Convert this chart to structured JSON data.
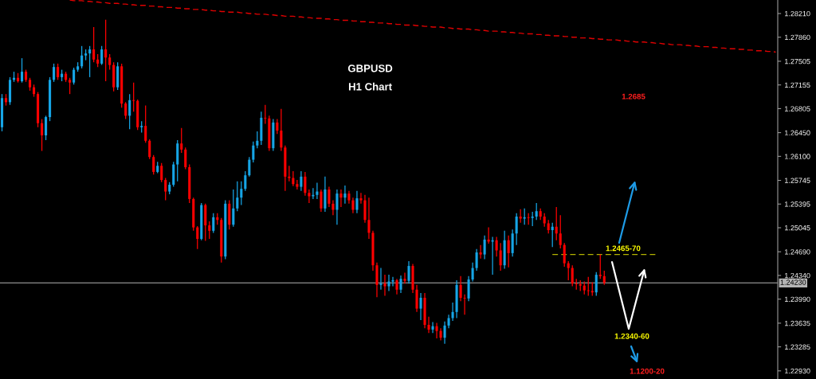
{
  "chart_data": {
    "type": "candlestick",
    "title": "GBPUSD",
    "subtitle": "H1 Chart",
    "categories": [
      null,
      null,
      null,
      null,
      null,
      null,
      null,
      null,
      null,
      null,
      null,
      null,
      null,
      null,
      null,
      null,
      null,
      null,
      null,
      null,
      null,
      null,
      null,
      null,
      null,
      null,
      null,
      null,
      null,
      null,
      null,
      null,
      null,
      null,
      null,
      null,
      null,
      null,
      null,
      null,
      null,
      null,
      null,
      null,
      null,
      null,
      null,
      null,
      null,
      null,
      null,
      null,
      null,
      null,
      null,
      null,
      null,
      null,
      null,
      null,
      null,
      null,
      null,
      null,
      null,
      null,
      null,
      null,
      null,
      null,
      null,
      null,
      null,
      null,
      null,
      null,
      null,
      null,
      null,
      null,
      null,
      null,
      null,
      null,
      null,
      null,
      null,
      null,
      null,
      null,
      null,
      null,
      null,
      null,
      null,
      null,
      null,
      null,
      null,
      null,
      null,
      null,
      null,
      null,
      null,
      null,
      null,
      null,
      null,
      null,
      null,
      null,
      null,
      null,
      null,
      null,
      null,
      null,
      null,
      null,
      null,
      null,
      null,
      null,
      null,
      null,
      null,
      null,
      null,
      null,
      null,
      null,
      null,
      null,
      null,
      null,
      null,
      null,
      null,
      null,
      null,
      null,
      null,
      null,
      null,
      null,
      null,
      null,
      null,
      null,
      null,
      null,
      null,
      null,
      null,
      null,
      null,
      null,
      null,
      null,
      null,
      null,
      null,
      null,
      null,
      null,
      null,
      null,
      null,
      null,
      null,
      null,
      null,
      null,
      null,
      null,
      null,
      null,
      null,
      null,
      null,
      null,
      null,
      null,
      null,
      null,
      null,
      null,
      null,
      null,
      null,
      null,
      null,
      null,
      null
    ],
    "ohlc": [
      [
        1.2653,
        1.2702,
        1.2647,
        1.2696
      ],
      [
        1.2696,
        1.2702,
        1.2685,
        1.269
      ],
      [
        1.269,
        1.2727,
        1.2686,
        1.2723
      ],
      [
        1.2723,
        1.2735,
        1.272,
        1.2726
      ],
      [
        1.2726,
        1.2733,
        1.2719,
        1.2721
      ],
      [
        1.2721,
        1.2755,
        1.2719,
        1.2735
      ],
      [
        1.2735,
        1.2738,
        1.272,
        1.2723
      ],
      [
        1.2723,
        1.2726,
        1.2707,
        1.2712
      ],
      [
        1.2712,
        1.2716,
        1.2698,
        1.2702
      ],
      [
        1.2702,
        1.2705,
        1.2653,
        1.2659
      ],
      [
        1.2659,
        1.2665,
        1.2618,
        1.2641
      ],
      [
        1.2641,
        1.267,
        1.2634,
        1.2668
      ],
      [
        1.2668,
        1.2727,
        1.2662,
        1.2723
      ],
      [
        1.2723,
        1.2747,
        1.272,
        1.2742
      ],
      [
        1.2742,
        1.2747,
        1.2723,
        1.2727
      ],
      [
        1.2727,
        1.2738,
        1.2721,
        1.2732
      ],
      [
        1.2732,
        1.2735,
        1.272,
        1.2723
      ],
      [
        1.2723,
        1.2726,
        1.2702,
        1.2719
      ],
      [
        1.2719,
        1.2741,
        1.2716,
        1.2738
      ],
      [
        1.2738,
        1.2749,
        1.2735,
        1.2743
      ],
      [
        1.2743,
        1.2773,
        1.274,
        1.2759
      ],
      [
        1.2759,
        1.2768,
        1.2752,
        1.2762
      ],
      [
        1.2762,
        1.2773,
        1.2727,
        1.2768
      ],
      [
        1.2768,
        1.2801,
        1.2749,
        1.2753
      ],
      [
        1.2753,
        1.2761,
        1.2742,
        1.2747
      ],
      [
        1.2747,
        1.2773,
        1.2745,
        1.2768
      ],
      [
        1.2768,
        1.2812,
        1.2721,
        1.2756
      ],
      [
        1.2756,
        1.2761,
        1.2738,
        1.2745
      ],
      [
        1.2745,
        1.2749,
        1.2706,
        1.2712
      ],
      [
        1.2712,
        1.2749,
        1.2708,
        1.2743
      ],
      [
        1.2743,
        1.2747,
        1.2682,
        1.2688
      ],
      [
        1.2688,
        1.269,
        1.2665,
        1.267
      ],
      [
        1.267,
        1.2702,
        1.265,
        1.2693
      ],
      [
        1.2693,
        1.2719,
        1.2676,
        1.2692
      ],
      [
        1.2692,
        1.2694,
        1.2649,
        1.2653
      ],
      [
        1.2653,
        1.2662,
        1.2645,
        1.2655
      ],
      [
        1.2655,
        1.2685,
        1.263,
        1.2633
      ],
      [
        1.2633,
        1.2635,
        1.2606,
        1.2609
      ],
      [
        1.2609,
        1.2612,
        1.2583,
        1.2587
      ],
      [
        1.2587,
        1.2602,
        1.2585,
        1.2596
      ],
      [
        1.2596,
        1.26,
        1.2572,
        1.2575
      ],
      [
        1.2575,
        1.2578,
        1.2545,
        1.2558
      ],
      [
        1.2558,
        1.2572,
        1.2554,
        1.2568
      ],
      [
        1.2568,
        1.2602,
        1.2565,
        1.2598
      ],
      [
        1.2598,
        1.2634,
        1.2573,
        1.2629
      ],
      [
        1.2629,
        1.2652,
        1.2615,
        1.262
      ],
      [
        1.262,
        1.2623,
        1.2591,
        1.2594
      ],
      [
        1.2594,
        1.2598,
        1.2541,
        1.2547
      ],
      [
        1.2547,
        1.2549,
        1.25,
        1.2505
      ],
      [
        1.2505,
        1.2507,
        1.2473,
        1.2488
      ],
      [
        1.2488,
        1.2541,
        1.2486,
        1.2538
      ],
      [
        1.2538,
        1.254,
        1.2485,
        1.2508
      ],
      [
        1.2508,
        1.2514,
        1.2488,
        1.25
      ],
      [
        1.25,
        1.2526,
        1.2497,
        1.252
      ],
      [
        1.252,
        1.2526,
        1.2509,
        1.2516
      ],
      [
        1.2516,
        1.2519,
        1.2453,
        1.2462
      ],
      [
        1.2462,
        1.2545,
        1.2458,
        1.254
      ],
      [
        1.254,
        1.2545,
        1.2502,
        1.2509
      ],
      [
        1.2509,
        1.2561,
        1.2506,
        1.2533
      ],
      [
        1.2533,
        1.2573,
        1.2529,
        1.2549
      ],
      [
        1.2549,
        1.2573,
        1.2538,
        1.2562
      ],
      [
        1.2562,
        1.2588,
        1.2559,
        1.2582
      ],
      [
        1.2582,
        1.2609,
        1.258,
        1.2605
      ],
      [
        1.2605,
        1.2632,
        1.2601,
        1.2626
      ],
      [
        1.2626,
        1.2647,
        1.2622,
        1.2633
      ],
      [
        1.2633,
        1.2676,
        1.2627,
        1.2667
      ],
      [
        1.2667,
        1.2686,
        1.2658,
        1.2666
      ],
      [
        1.2666,
        1.267,
        1.2618,
        1.2622
      ],
      [
        1.2622,
        1.2665,
        1.2618,
        1.266
      ],
      [
        1.266,
        1.2665,
        1.2643,
        1.2648
      ],
      [
        1.2648,
        1.268,
        1.2618,
        1.2623
      ],
      [
        1.2623,
        1.2626,
        1.2559,
        1.258
      ],
      [
        1.258,
        1.2596,
        1.2573,
        1.2578
      ],
      [
        1.2578,
        1.2588,
        1.2566,
        1.2569
      ],
      [
        1.2569,
        1.2575,
        1.2561,
        1.2565
      ],
      [
        1.2565,
        1.2588,
        1.2559,
        1.258
      ],
      [
        1.258,
        1.2587,
        1.2552,
        1.2556
      ],
      [
        1.2556,
        1.2561,
        1.2541,
        1.2551
      ],
      [
        1.2551,
        1.2563,
        1.2547,
        1.2553
      ],
      [
        1.2553,
        1.2571,
        1.2547,
        1.2558
      ],
      [
        1.2558,
        1.2561,
        1.2528,
        1.2533
      ],
      [
        1.2533,
        1.258,
        1.2528,
        1.2561
      ],
      [
        1.2561,
        1.2565,
        1.2535,
        1.254
      ],
      [
        1.254,
        1.2545,
        1.2523,
        1.2531
      ],
      [
        1.2531,
        1.2561,
        1.2509,
        1.2555
      ],
      [
        1.2555,
        1.2561,
        1.2535,
        1.2549
      ],
      [
        1.2549,
        1.2567,
        1.254,
        1.2555
      ],
      [
        1.2555,
        1.2559,
        1.254,
        1.2545
      ],
      [
        1.2545,
        1.2549,
        1.2526,
        1.2531
      ],
      [
        1.2531,
        1.2559,
        1.2526,
        1.2548
      ],
      [
        1.2548,
        1.2556,
        1.254,
        1.2545
      ],
      [
        1.2545,
        1.2553,
        1.2512,
        1.2516
      ],
      [
        1.2516,
        1.2549,
        1.2488,
        1.2497
      ],
      [
        1.2497,
        1.25,
        1.2441,
        1.2449
      ],
      [
        1.2449,
        1.2453,
        1.2402,
        1.242
      ],
      [
        1.242,
        1.2445,
        1.2413,
        1.2422
      ],
      [
        1.2422,
        1.2435,
        1.2404,
        1.2418
      ],
      [
        1.2418,
        1.2435,
        1.2411,
        1.2425
      ],
      [
        1.2425,
        1.2432,
        1.2418,
        1.2427
      ],
      [
        1.2427,
        1.2429,
        1.2406,
        1.2413
      ],
      [
        1.2413,
        1.2434,
        1.2408,
        1.2429
      ],
      [
        1.2429,
        1.2438,
        1.2422,
        1.2426
      ],
      [
        1.2426,
        1.2455,
        1.2422,
        1.2448
      ],
      [
        1.2448,
        1.2451,
        1.2408,
        1.2413
      ],
      [
        1.2413,
        1.242,
        1.238,
        1.2385
      ],
      [
        1.2385,
        1.2408,
        1.2368,
        1.2401
      ],
      [
        1.2401,
        1.2408,
        1.2356,
        1.2361
      ],
      [
        1.2361,
        1.2373,
        1.2349,
        1.2354
      ],
      [
        1.2354,
        1.2365,
        1.2349,
        1.2359
      ],
      [
        1.2359,
        1.2364,
        1.2341,
        1.2352
      ],
      [
        1.2352,
        1.2356,
        1.2338,
        1.2342
      ],
      [
        1.2342,
        1.2366,
        1.2333,
        1.236
      ],
      [
        1.236,
        1.2376,
        1.2356,
        1.2371
      ],
      [
        1.2371,
        1.2394,
        1.2367,
        1.238
      ],
      [
        1.238,
        1.2427,
        1.2371,
        1.242
      ],
      [
        1.242,
        1.2433,
        1.2396,
        1.2401
      ],
      [
        1.2401,
        1.2406,
        1.2376,
        1.24
      ],
      [
        1.24,
        1.2433,
        1.2396,
        1.2428
      ],
      [
        1.2428,
        1.2453,
        1.2425,
        1.2445
      ],
      [
        1.2445,
        1.2473,
        1.2441,
        1.2468
      ],
      [
        1.2468,
        1.2479,
        1.2459,
        1.2465
      ],
      [
        1.2465,
        1.2493,
        1.2458,
        1.2487
      ],
      [
        1.2487,
        1.2505,
        1.2481,
        1.2484
      ],
      [
        1.2484,
        1.2491,
        1.2435,
        1.2486
      ],
      [
        1.2486,
        1.2491,
        1.2462,
        1.2471
      ],
      [
        1.2471,
        1.2482,
        1.2441,
        1.2449
      ],
      [
        1.2449,
        1.25,
        1.2444,
        1.2486
      ],
      [
        1.2486,
        1.2493,
        1.2446,
        1.2467
      ],
      [
        1.2467,
        1.2502,
        1.2462,
        1.2496
      ],
      [
        1.2496,
        1.2526,
        1.2479,
        1.2521
      ],
      [
        1.2521,
        1.2532,
        1.2512,
        1.2518
      ],
      [
        1.2518,
        1.2533,
        1.2509,
        1.252
      ],
      [
        1.252,
        1.2526,
        1.2509,
        1.2519
      ],
      [
        1.2519,
        1.2528,
        1.2507,
        1.2521
      ],
      [
        1.2521,
        1.2541,
        1.2516,
        1.2529
      ],
      [
        1.2529,
        1.2533,
        1.2516,
        1.2521
      ],
      [
        1.2521,
        1.2526,
        1.2506,
        1.2511
      ],
      [
        1.2511,
        1.2516,
        1.2496,
        1.2501
      ],
      [
        1.2501,
        1.2512,
        1.2476,
        1.2506
      ],
      [
        1.2506,
        1.2535,
        1.2486,
        1.2496
      ],
      [
        1.2496,
        1.2523,
        1.2474,
        1.2479
      ],
      [
        1.2479,
        1.2482,
        1.2447,
        1.2452
      ],
      [
        1.2452,
        1.2455,
        1.2427,
        1.2445
      ],
      [
        1.2445,
        1.2449,
        1.2418,
        1.2422
      ],
      [
        1.2422,
        1.2429,
        1.2413,
        1.2421
      ],
      [
        1.2421,
        1.2427,
        1.2411,
        1.2419
      ],
      [
        1.2419,
        1.2425,
        1.2406,
        1.2412
      ],
      [
        1.2412,
        1.2432,
        1.2404,
        1.2411
      ],
      [
        1.2411,
        1.2424,
        1.2404,
        1.2409
      ],
      [
        1.2409,
        1.2439,
        1.2404,
        1.2435
      ],
      [
        1.2435,
        1.2465,
        1.2429,
        1.2433
      ],
      [
        1.2433,
        1.2441,
        1.242,
        1.2423
      ],
      null,
      null,
      null,
      null,
      null,
      null,
      null,
      null,
      null,
      null,
      null,
      null,
      null,
      null,
      null,
      null,
      null,
      null,
      null,
      null,
      null,
      null,
      null,
      null,
      null,
      null,
      null,
      null,
      null,
      null,
      null,
      null,
      null,
      null,
      null,
      null,
      null,
      null,
      null,
      null,
      null,
      null,
      null
    ],
    "colors": [
      "#16a5e6",
      "#ff0000",
      "#16a5e6",
      "#16a5e6",
      "#ff0000",
      "#16a5e6",
      "#ff0000",
      "#ff0000",
      "#ff0000",
      "#ff0000",
      "#ff0000",
      "#16a5e6",
      "#16a5e6",
      "#16a5e6",
      "#ff0000",
      "#16a5e6",
      "#ff0000",
      "#ff0000",
      "#16a5e6",
      "#16a5e6",
      "#16a5e6",
      "#16a5e6",
      "#16a5e6",
      "#ff0000",
      "#ff0000",
      "#16a5e6",
      "#ff0000",
      "#ff0000",
      "#ff0000",
      "#16a5e6",
      "#ff0000",
      "#ff0000",
      "#16a5e6",
      "#ff0000",
      "#ff0000",
      "#16a5e6",
      "#ff0000",
      "#ff0000",
      "#ff0000",
      "#16a5e6",
      "#ff0000",
      "#ff0000",
      "#16a5e6",
      "#16a5e6",
      "#16a5e6",
      "#ff0000",
      "#ff0000",
      "#ff0000",
      "#ff0000",
      "#ff0000",
      "#16a5e6",
      "#ff0000",
      "#ff0000",
      "#16a5e6",
      "#ff0000",
      "#ff0000",
      "#16a5e6",
      "#ff0000",
      "#16a5e6",
      "#16a5e6",
      "#16a5e6",
      "#16a5e6",
      "#16a5e6",
      "#16a5e6",
      "#16a5e6",
      "#16a5e6",
      "#ff0000",
      "#ff0000",
      "#16a5e6",
      "#ff0000",
      "#ff0000",
      "#ff0000",
      "#ff0000",
      "#ff0000",
      "#ff0000",
      "#16a5e6",
      "#ff0000",
      "#ff0000",
      "#16a5e6",
      "#16a5e6",
      "#ff0000",
      "#16a5e6",
      "#ff0000",
      "#ff0000",
      "#16a5e6",
      "#ff0000",
      "#16a5e6",
      "#ff0000",
      "#ff0000",
      "#16a5e6",
      "#ff0000",
      "#ff0000",
      "#ff0000",
      "#ff0000",
      "#ff0000",
      "#16a5e6",
      "#ff0000",
      "#16a5e6",
      "#16a5e6",
      "#ff0000",
      "#16a5e6",
      "#ff0000",
      "#16a5e6",
      "#ff0000",
      "#ff0000",
      "#16a5e6",
      "#ff0000",
      "#ff0000",
      "#16a5e6",
      "#ff0000",
      "#ff0000",
      "#16a5e6",
      "#16a5e6",
      "#16a5e6",
      "#16a5e6",
      "#ff0000",
      "#ff0000",
      "#16a5e6",
      "#16a5e6",
      "#16a5e6",
      "#ff0000",
      "#16a5e6",
      "#ff0000",
      "#16a5e6",
      "#ff0000",
      "#ff0000",
      "#16a5e6",
      "#ff0000",
      "#16a5e6",
      "#16a5e6",
      "#ff0000",
      "#16a5e6",
      "#ff0000",
      "#16a5e6",
      "#16a5e6",
      "#ff0000",
      "#ff0000",
      "#ff0000",
      "#16a5e6",
      "#ff0000",
      "#ff0000",
      "#ff0000",
      "#ff0000",
      "#ff0000",
      "#ff0000",
      "#ff0000",
      "#ff0000",
      "#ff0000",
      "#ff0000",
      "#16a5e6",
      "#ff0000",
      "#ff0000",
      null,
      null,
      null,
      null,
      null,
      null,
      null,
      null,
      null,
      null,
      null,
      null,
      null,
      null,
      null,
      null,
      null,
      null,
      null,
      null,
      null,
      null,
      null,
      null,
      null,
      null,
      null,
      null,
      null,
      null,
      null,
      null,
      null,
      null,
      null,
      null,
      null,
      null,
      null,
      null,
      null,
      null,
      null
    ],
    "series": [
      {
        "type": "line",
        "color": "#e00000",
        "line_style": "dashed",
        "values": [
          null,
          null,
          null,
          null,
          null,
          null,
          null,
          null,
          null,
          null,
          null,
          null,
          null,
          null,
          null,
          null,
          null,
          1.2841,
          1.284,
          1.284,
          1.284,
          1.2839,
          1.2839,
          1.2838,
          1.2838,
          1.2837,
          1.2837,
          1.2836,
          1.2836,
          1.2836,
          1.2835,
          1.2835,
          1.2834,
          1.2834,
          1.2833,
          1.2833,
          1.2833,
          1.2832,
          1.2832,
          1.2831,
          1.2831,
          1.283,
          1.283,
          1.283,
          1.2829,
          1.2829,
          1.2828,
          1.2828,
          1.2827,
          1.2827,
          1.2827,
          1.2826,
          1.2826,
          1.2825,
          1.2825,
          1.2824,
          1.2824,
          1.2823,
          1.2823,
          1.2823,
          1.2822,
          1.2822,
          1.2821,
          1.2821,
          1.282,
          1.282,
          1.282,
          1.2819,
          1.2819,
          1.2818,
          1.2818,
          1.2817,
          1.2817,
          1.2817,
          1.2816,
          1.2816,
          1.2815,
          1.2815,
          1.2814,
          1.2814,
          1.2814,
          1.2813,
          1.2813,
          1.2812,
          1.2812,
          1.2811,
          1.2811,
          1.2811,
          1.281,
          1.281,
          1.2809,
          1.2809,
          1.2808,
          1.2808,
          1.2807,
          1.2807,
          1.2807,
          1.2806,
          1.2806,
          1.2805,
          1.2805,
          1.2804,
          1.2804,
          1.2804,
          1.2803,
          1.2803,
          1.2802,
          1.2802,
          1.2801,
          1.2801,
          1.2801,
          1.28,
          1.28,
          1.2799,
          1.2799,
          1.2798,
          1.2798,
          1.2798,
          1.2797,
          1.2797,
          1.2796,
          1.2796,
          1.2795,
          1.2795,
          1.2795,
          1.2794,
          1.2794,
          1.2793,
          1.2793,
          1.2792,
          1.2792,
          1.2791,
          1.2791,
          1.2791,
          1.279,
          1.279,
          1.2789,
          1.2789,
          1.2788,
          1.2788,
          1.2788,
          1.2787,
          1.2787,
          1.2786,
          1.2786,
          1.2785,
          1.2785,
          1.2785,
          1.2784,
          1.2784,
          1.2783,
          1.2783,
          1.2782,
          1.2782,
          1.2782,
          1.2781,
          1.2781,
          1.278,
          1.278,
          1.2779,
          1.2779,
          1.2779,
          1.2778,
          1.2778,
          1.2777,
          1.2777,
          1.2776,
          1.2776,
          1.2775,
          1.2775,
          1.2775,
          1.2774,
          1.2774,
          1.2773,
          1.2773,
          1.2772,
          1.2772,
          1.2772,
          1.2771,
          1.2771,
          1.277,
          1.277,
          1.2769,
          1.2769,
          1.2769,
          1.2768,
          1.2768,
          1.2767,
          1.2767,
          1.2766,
          1.2766,
          1.2766,
          1.2765,
          1.2765,
          1.2764
        ]
      },
      {
        "type": "line",
        "color": "#b4b400",
        "line_style": "dashed",
        "values": [
          null,
          null,
          null,
          null,
          null,
          null,
          null,
          null,
          null,
          null,
          null,
          null,
          null,
          null,
          null,
          null,
          null,
          null,
          null,
          null,
          null,
          null,
          null,
          null,
          null,
          null,
          null,
          null,
          null,
          null,
          null,
          null,
          null,
          null,
          null,
          null,
          null,
          null,
          null,
          null,
          null,
          null,
          null,
          null,
          null,
          null,
          null,
          null,
          null,
          null,
          null,
          null,
          null,
          null,
          null,
          null,
          null,
          null,
          null,
          null,
          null,
          null,
          null,
          null,
          null,
          null,
          null,
          null,
          null,
          null,
          null,
          null,
          null,
          null,
          null,
          null,
          null,
          null,
          null,
          null,
          null,
          null,
          null,
          null,
          null,
          null,
          null,
          null,
          null,
          null,
          null,
          null,
          null,
          null,
          null,
          null,
          null,
          null,
          null,
          null,
          null,
          null,
          null,
          null,
          null,
          null,
          null,
          null,
          null,
          null,
          null,
          null,
          null,
          null,
          null,
          null,
          null,
          null,
          null,
          null,
          null,
          null,
          null,
          null,
          null,
          null,
          null,
          null,
          null,
          null,
          null,
          null,
          null,
          null,
          null,
          null,
          null,
          null,
          1.2465,
          1.2465,
          1.2465,
          1.2465,
          1.2465,
          1.2465,
          1.2465,
          1.2465,
          1.2465,
          1.2465,
          1.2465,
          1.2465,
          1.2465,
          1.2465,
          1.2465,
          1.2465,
          1.2465,
          1.2465,
          1.2465,
          1.2465,
          1.2465,
          1.2465,
          1.2465,
          1.2465,
          1.2465,
          1.2465,
          1.2465,
          null,
          null,
          null,
          null,
          null,
          null,
          null,
          null,
          null,
          null,
          null,
          null,
          null,
          null,
          null,
          null,
          null,
          null,
          null,
          null,
          null,
          null,
          null,
          null,
          null,
          null,
          null,
          null,
          null,
          null
        ]
      }
    ],
    "ylim": [
      1.2281,
      1.2841
    ],
    "yticks": [
      {
        "value": 1.2821,
        "label": "1.28210"
      },
      {
        "value": 1.2786,
        "label": "1.27860"
      },
      1.27505,
      1.27155,
      1.26805,
      {
        "value": 1.2645,
        "label": "1.26450"
      },
      {
        "value": 1.261,
        "label": "1.26100"
      },
      1.25745,
      1.25395,
      1.25045,
      {
        "value": 1.2469,
        "label": "1.24690"
      },
      {
        "value": 1.2434,
        "label": "1.24340"
      },
      {
        "value": 1.2399,
        "label": "1.23990"
      },
      1.23635,
      1.23285,
      {
        "value": 1.2293,
        "label": "1.22930"
      }
    ],
    "ref_lines": [
      {
        "axis": "y",
        "value": 1.2423,
        "label": "1.24230",
        "color": "#b4b4b4"
      }
    ],
    "annotations": [
      "1.2685",
      {
        "text": "1.2465-70",
        "y": 1.2465
      },
      "1.2340-60",
      "1.1200-20"
    ],
    "tick_labels": "y"
  }
}
